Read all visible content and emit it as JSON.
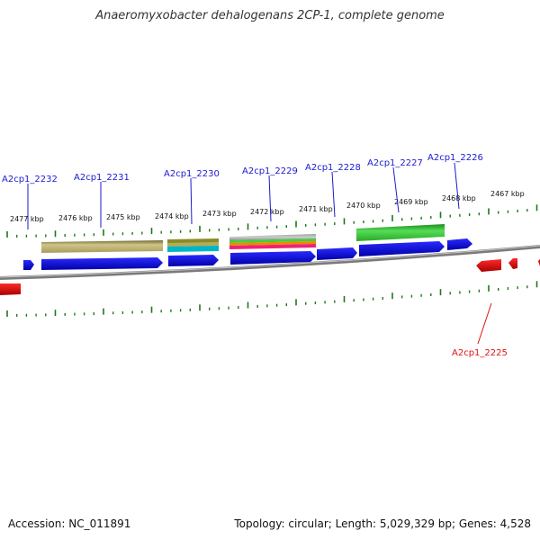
{
  "title": "Anaeromyxobacter dehalogenans 2CP-1, complete genome",
  "footer": {
    "accession": "Accession: NC_011891",
    "summary": "Topology: circular; Length: 5,029,329 bp; Genes: 4,528"
  },
  "colors": {
    "forward_gene": "#0000e0",
    "reverse_gene": "#ee0000",
    "tick": "#1a7a1a",
    "backbone": "#7a7a7a",
    "label_forward": "#1a1ad0",
    "label_reverse": "#dd1111"
  },
  "scale_labels": [
    "2477 kbp",
    "2476 kbp",
    "2475 kbp",
    "2474 kbp",
    "2473 kbp",
    "2472 kbp",
    "2471 kbp",
    "2470 kbp",
    "2469 kbp",
    "2468 kbp",
    "2467 kbp"
  ],
  "genes": [
    {
      "id": "A2cp1_2232",
      "strand": "forward"
    },
    {
      "id": "A2cp1_2231",
      "strand": "forward"
    },
    {
      "id": "A2cp1_2230",
      "strand": "forward"
    },
    {
      "id": "A2cp1_2229",
      "strand": "forward"
    },
    {
      "id": "A2cp1_2228",
      "strand": "forward"
    },
    {
      "id": "A2cp1_2227",
      "strand": "forward"
    },
    {
      "id": "A2cp1_2226",
      "strand": "forward"
    },
    {
      "id": "A2cp1_2225",
      "strand": "reverse"
    }
  ],
  "feature_tracks": [
    {
      "name": "khaki-track",
      "color": "#bdb070"
    },
    {
      "name": "olive-track",
      "color": "#8a8a2a"
    },
    {
      "name": "cyan-track",
      "color": "#00b5c8"
    },
    {
      "name": "grey-track",
      "color": "#a8a8a8"
    },
    {
      "name": "green-track",
      "color": "#44cc44"
    },
    {
      "name": "orange-track",
      "color": "#ee8800"
    },
    {
      "name": "magenta-track",
      "color": "#ee2277"
    }
  ]
}
